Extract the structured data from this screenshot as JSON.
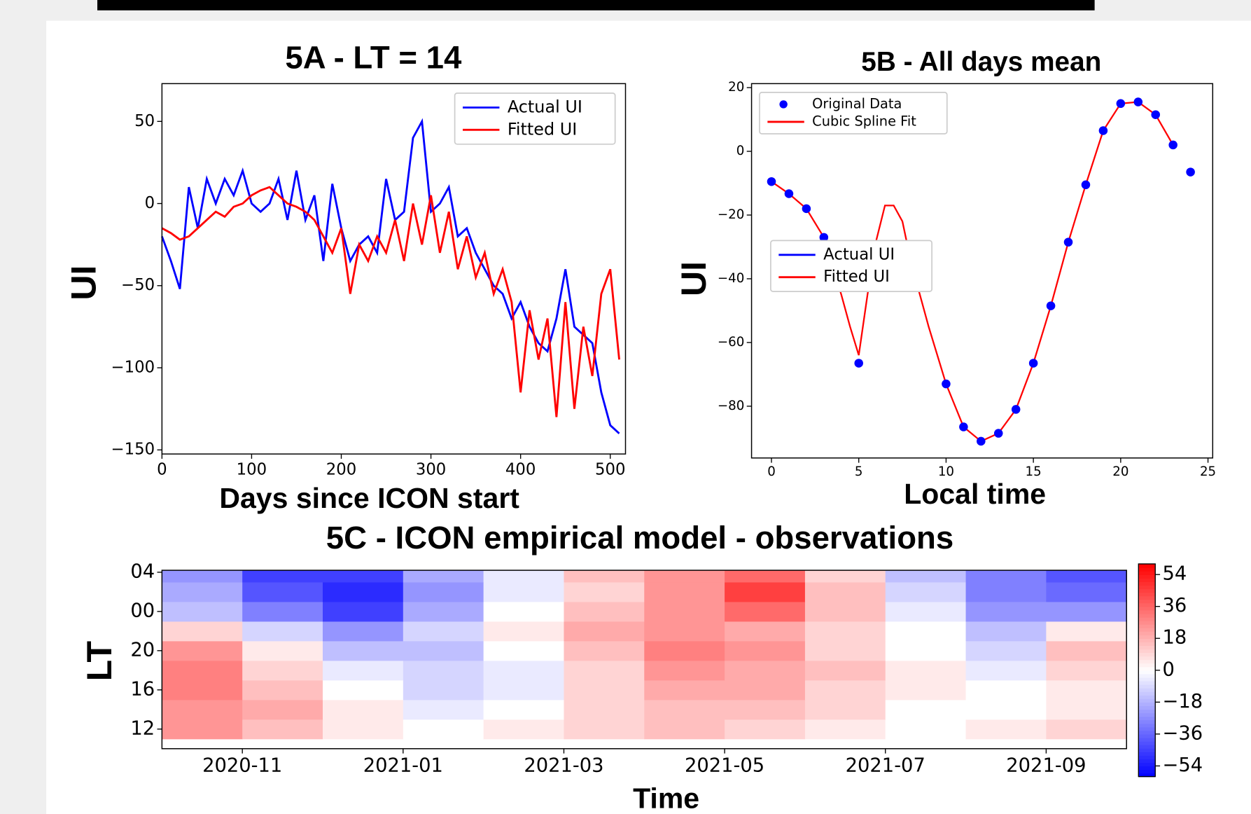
{
  "chart_data": [
    {
      "type": "line",
      "title": "5A - LT = 14",
      "xlabel": "Days since ICON start",
      "ylabel": "UI",
      "x": [
        0,
        10,
        20,
        30,
        40,
        50,
        60,
        70,
        80,
        90,
        100,
        110,
        120,
        130,
        140,
        150,
        160,
        170,
        180,
        190,
        200,
        210,
        220,
        230,
        240,
        250,
        260,
        270,
        280,
        290,
        300,
        310,
        320,
        330,
        340,
        350,
        360,
        370,
        380,
        390,
        400,
        410,
        420,
        430,
        440,
        450,
        460,
        470,
        480,
        490,
        500,
        510
      ],
      "series": [
        {
          "name": "Actual UI",
          "color": "#0000ff",
          "values": [
            -20,
            -35,
            -52,
            10,
            -15,
            15,
            0,
            15,
            5,
            20,
            0,
            -5,
            0,
            15,
            -10,
            20,
            -10,
            5,
            -35,
            12,
            -15,
            -35,
            -25,
            -20,
            -30,
            15,
            -10,
            -5,
            40,
            50,
            -5,
            0,
            10,
            -20,
            -15,
            -30,
            -40,
            -50,
            -55,
            -70,
            -60,
            -75,
            -85,
            -90,
            -70,
            -40,
            -75,
            -80,
            -85,
            -115,
            -135,
            -140
          ]
        },
        {
          "name": "Fitted UI",
          "color": "#ff0000",
          "values": [
            -15,
            -18,
            -22,
            -20,
            -15,
            -10,
            -5,
            -8,
            -2,
            0,
            5,
            8,
            10,
            5,
            0,
            -2,
            -5,
            -10,
            -20,
            -30,
            -15,
            -55,
            -25,
            -35,
            -20,
            -30,
            -10,
            -35,
            0,
            -25,
            5,
            -30,
            -5,
            -40,
            -20,
            -45,
            -30,
            -55,
            -40,
            -60,
            -115,
            -65,
            -95,
            -70,
            -130,
            -60,
            -125,
            -75,
            -105,
            -55,
            -40,
            -95
          ]
        }
      ],
      "xlim": [
        0,
        517
      ],
      "xticks": [
        0,
        100,
        200,
        300,
        400,
        500
      ],
      "ylim": [
        -152.5,
        73
      ],
      "yticks": [
        {
          "value": -150,
          "label": "−150"
        },
        {
          "value": -100,
          "label": "−100"
        },
        {
          "value": -50,
          "label": "−50"
        },
        0,
        50
      ],
      "legend": "upper right"
    },
    {
      "type": "scatter",
      "title": "5B - All days mean",
      "xlabel": "Local time",
      "ylabel": "UI",
      "series": [
        {
          "name": "Original Data",
          "color": "#0000ff",
          "marker": "dot",
          "x": [
            0,
            1,
            2,
            3,
            5,
            10,
            11,
            12,
            13,
            14,
            15,
            16,
            17,
            18,
            19,
            20,
            21,
            22,
            23,
            24
          ],
          "values": [
            -9.5,
            -13.3,
            -18,
            -27,
            -66.5,
            -73,
            -86.5,
            -91,
            -88.5,
            -81,
            -66.5,
            -48.5,
            -28.5,
            -10.5,
            6.5,
            15,
            15.5,
            11.5,
            2,
            -6.5
          ]
        },
        {
          "name": "Cubic Spline Fit",
          "color": "#ff0000",
          "marker": "line",
          "x": [
            0,
            1,
            2,
            3,
            4,
            4.5,
            5,
            5.5,
            6,
            6.5,
            7,
            7.5,
            8,
            9,
            10,
            11,
            12,
            13,
            14,
            15,
            16,
            17,
            18,
            19,
            20,
            21,
            22,
            23
          ],
          "values": [
            -9.5,
            -13.3,
            -18,
            -27,
            -45,
            -55,
            -64,
            -45,
            -28,
            -17,
            -17,
            -22,
            -35,
            -55,
            -73,
            -86.5,
            -91,
            -88.5,
            -81,
            -66.5,
            -48.5,
            -28.5,
            -10.5,
            6.5,
            15,
            15.5,
            11.5,
            2
          ]
        }
      ],
      "xlim": [
        -1.14,
        25.27
      ],
      "xticks": [
        0,
        5,
        10,
        15,
        20,
        25
      ],
      "ylim": [
        -96.25,
        21.25
      ],
      "yticks": [
        {
          "value": -80,
          "label": "−80"
        },
        {
          "value": -60,
          "label": "−60"
        },
        {
          "value": -40,
          "label": "−40"
        },
        {
          "value": -20,
          "label": "−20"
        },
        0,
        20
      ],
      "legend": "upper left",
      "overlay_legend": [
        {
          "name": "Actual UI",
          "color": "#0000ff"
        },
        {
          "name": "Fitted UI",
          "color": "#ff0000"
        }
      ]
    },
    {
      "type": "heatmap",
      "title": "5C - ICON empirical model - observations",
      "xlabel": "Time",
      "ylabel": "LT",
      "x": [
        "2020-10",
        "2020-11",
        "2020-12",
        "2021-01",
        "2021-02",
        "2021-03",
        "2021-04",
        "2021-05",
        "2021-06",
        "2021-07",
        "2021-08",
        "2021-09"
      ],
      "y": [
        12,
        14,
        16,
        18,
        20,
        22,
        24,
        26,
        28
      ],
      "values": [
        [
          25,
          15,
          5,
          0,
          5,
          10,
          15,
          10,
          5,
          0,
          5,
          10
        ],
        [
          25,
          20,
          5,
          -5,
          0,
          10,
          15,
          15,
          10,
          0,
          0,
          5
        ],
        [
          30,
          15,
          0,
          -10,
          -5,
          10,
          20,
          20,
          10,
          5,
          0,
          5
        ],
        [
          30,
          10,
          -5,
          -10,
          -5,
          10,
          25,
          20,
          15,
          5,
          -5,
          10
        ],
        [
          25,
          5,
          -15,
          -15,
          0,
          15,
          30,
          25,
          10,
          0,
          -10,
          15
        ],
        [
          10,
          -10,
          -25,
          -10,
          5,
          20,
          25,
          20,
          10,
          0,
          -15,
          5
        ],
        [
          -15,
          -30,
          -45,
          -20,
          0,
          15,
          25,
          35,
          15,
          -5,
          -25,
          -25
        ],
        [
          -20,
          -40,
          -50,
          -25,
          -5,
          10,
          25,
          45,
          15,
          -10,
          -30,
          -35
        ],
        [
          -25,
          -45,
          -45,
          -20,
          -5,
          15,
          25,
          35,
          10,
          -15,
          -30,
          -40
        ]
      ],
      "xlim": [
        "2020-10",
        "2021-10"
      ],
      "xticks": [
        "2020-11",
        "2021-01",
        "2021-03",
        "2021-05",
        "2021-07",
        "2021-09"
      ],
      "ylim": [
        10,
        28.2
      ],
      "yticks": [
        12,
        16,
        20,
        {
          "value": 24,
          "label": "00"
        },
        {
          "value": 28,
          "label": "04"
        }
      ],
      "colorbar_lim": [
        -60,
        60
      ],
      "colorbar_ticks": [
        {
          "value": -54,
          "label": "−54"
        },
        {
          "value": -36,
          "label": "−36"
        },
        {
          "value": -18,
          "label": "−18"
        },
        0,
        18,
        36,
        54
      ]
    }
  ]
}
